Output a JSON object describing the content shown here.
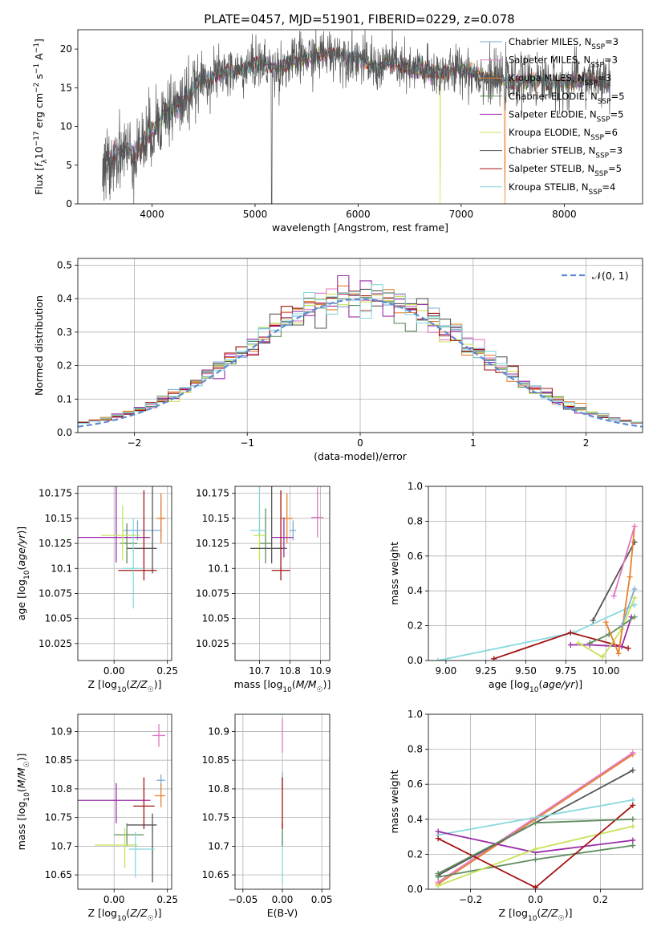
{
  "figure_title": "PLATE=0457, MJD=51901, FIBERID=0229, z=0.078",
  "palette": {
    "ch_miles": "#7fa9d3",
    "sa_miles": "#e377c2",
    "kr_miles": "#e6802e",
    "ch_elodie": "#5e8c5e",
    "sa_elodie": "#9a2da8",
    "kr_elodie": "#c8e25a",
    "ch_stelib": "#555555",
    "sa_stelib": "#a31212",
    "kr_stelib": "#86d8dc",
    "normal": "#5b8bd6"
  },
  "chart_data": [
    {
      "id": "spectrum",
      "type": "line",
      "title": "PLATE=0457, MJD=51901, FIBERID=0229, z=0.078",
      "xlabel": "wavelength [Angstrom, rest frame]",
      "ylabel": "Flux [fλ10⁻¹⁷ erg cm⁻² s⁻¹ A⁻¹]",
      "xlim": [
        3280,
        8760
      ],
      "ylim": [
        0,
        22.5
      ],
      "xticks": [
        4000,
        5000,
        6000,
        7000,
        8000
      ],
      "yticks": [
        0,
        5,
        10,
        15,
        20
      ],
      "grid": false,
      "legend_loc": "upper right",
      "legend": [
        {
          "key": "ch_miles",
          "label": "Chabrier MILES, N",
          "sub": "SSP",
          "suffix": "=3"
        },
        {
          "key": "sa_miles",
          "label": "Salpeter MILES, N",
          "sub": "SSP",
          "suffix": "=3"
        },
        {
          "key": "kr_miles",
          "label": "Kroupa MILES, N",
          "sub": "SSP",
          "suffix": "=3"
        },
        {
          "key": "ch_elodie",
          "label": "Chabrier ELODIE, N",
          "sub": "SSP",
          "suffix": "=5"
        },
        {
          "key": "sa_elodie",
          "label": "Salpeter ELODIE, N",
          "sub": "SSP",
          "suffix": "=5"
        },
        {
          "key": "kr_elodie",
          "label": "Kroupa ELODIE, N",
          "sub": "SSP",
          "suffix": "=6"
        },
        {
          "key": "ch_stelib",
          "label": "Chabrier STELIB, N",
          "sub": "SSP",
          "suffix": "=3"
        },
        {
          "key": "sa_stelib",
          "label": "Salpeter STELIB, N",
          "sub": "SSP",
          "suffix": "=5"
        },
        {
          "key": "kr_stelib",
          "label": "Kroupa STELIB, N",
          "sub": "SSP",
          "suffix": "=4"
        }
      ],
      "continuum": [
        [
          3500,
          3
        ],
        [
          3600,
          6
        ],
        [
          3700,
          7
        ],
        [
          3800,
          6.5
        ],
        [
          3900,
          7.5
        ],
        [
          4000,
          9.5
        ],
        [
          4100,
          11.5
        ],
        [
          4200,
          12.5
        ],
        [
          4300,
          13
        ],
        [
          4400,
          15
        ],
        [
          4500,
          16
        ],
        [
          4600,
          16.5
        ],
        [
          4700,
          17
        ],
        [
          4800,
          17
        ],
        [
          4900,
          17.5
        ],
        [
          5000,
          18
        ],
        [
          5100,
          18
        ],
        [
          5200,
          17.5
        ],
        [
          5300,
          18
        ],
        [
          5400,
          18.5
        ],
        [
          5500,
          19
        ],
        [
          5600,
          19
        ],
        [
          5700,
          19.5
        ],
        [
          5800,
          19.5
        ],
        [
          5900,
          19
        ],
        [
          6000,
          19
        ],
        [
          6100,
          18
        ],
        [
          6200,
          17.5
        ],
        [
          6300,
          18.5
        ],
        [
          6400,
          18
        ],
        [
          6500,
          17
        ],
        [
          6600,
          17.5
        ],
        [
          6700,
          17
        ],
        [
          6800,
          17
        ],
        [
          6900,
          17
        ],
        [
          7000,
          17.5
        ],
        [
          7100,
          17
        ],
        [
          7200,
          16.5
        ],
        [
          7300,
          16
        ],
        [
          7400,
          16
        ],
        [
          7500,
          15.5
        ],
        [
          7600,
          16
        ],
        [
          7700,
          16
        ],
        [
          7800,
          16
        ],
        [
          7900,
          15.5
        ],
        [
          8000,
          15.5
        ],
        [
          8100,
          16
        ],
        [
          8200,
          16
        ],
        [
          8300,
          16
        ],
        [
          8400,
          15.5
        ],
        [
          8500,
          15
        ]
      ]
    },
    {
      "id": "residuals",
      "type": "step",
      "xlabel": "(data-model)/error",
      "ylabel": "Normed distribution",
      "xlim": [
        -2.5,
        2.5
      ],
      "ylim": [
        0,
        0.52
      ],
      "xticks": [
        -2,
        -1,
        0,
        1,
        2
      ],
      "yticks": [
        0.0,
        0.1,
        0.2,
        0.3,
        0.4,
        0.5
      ],
      "grid": true,
      "legend_loc": "upper right",
      "legend": "𝒩(0, 1)",
      "normal": {
        "mean": 0,
        "sigma": 1
      }
    },
    {
      "id": "age_vs_z",
      "type": "errorbar",
      "xlabel": "Z [log10(Z/Z☉)]",
      "ylabel": "age  [log10(age/yr)]",
      "xlim": [
        -0.17,
        0.27
      ],
      "ylim": [
        10.008,
        10.182
      ],
      "xticks": [
        0.0,
        0.25
      ],
      "xticklabels": [
        "0.00",
        "0.25"
      ],
      "yticks": [
        10.025,
        10.05,
        10.075,
        10.1,
        10.125,
        10.15,
        10.175
      ],
      "grid": true,
      "points": [
        {
          "key": "ch_miles",
          "x": 0.11,
          "y": 10.138,
          "xerr": [
            0.07,
            0.11
          ],
          "yerr": [
            0.01,
            0.01
          ]
        },
        {
          "key": "sa_miles",
          "x": 0.22,
          "y": 10.15,
          "xerr": [
            0.01,
            0.02
          ],
          "yerr": [
            0.02,
            0.02
          ]
        },
        {
          "key": "kr_miles",
          "x": 0.22,
          "y": 10.15,
          "xerr": [
            0.02,
            0.02
          ],
          "yerr": [
            0.025,
            0.025
          ]
        },
        {
          "key": "ch_elodie",
          "x": 0.06,
          "y": 10.125,
          "xerr": [
            0.03,
            0.05
          ],
          "yerr": [
            0.02,
            0.02
          ]
        },
        {
          "key": "sa_elodie",
          "x": 0.01,
          "y": 10.131,
          "xerr": [
            0.18,
            0.16
          ],
          "yerr": [
            0.025,
            0.055
          ]
        },
        {
          "key": "kr_elodie",
          "x": 0.04,
          "y": 10.133,
          "xerr": [
            0.1,
            0.08
          ],
          "yerr": [
            0.025,
            0.03
          ]
        },
        {
          "key": "ch_stelib",
          "x": 0.18,
          "y": 10.12,
          "xerr": [
            0.12,
            0.02
          ],
          "yerr": [
            0.025,
            0.1
          ]
        },
        {
          "key": "sa_stelib",
          "x": 0.14,
          "y": 10.098,
          "xerr": [
            0.12,
            0.06
          ],
          "yerr": [
            0.01,
            0.08
          ]
        },
        {
          "key": "kr_stelib",
          "x": 0.09,
          "y": 10.1,
          "xerr": [
            0.05,
            0.05
          ],
          "yerr": [
            0.04,
            0.05
          ]
        }
      ]
    },
    {
      "id": "age_vs_mass",
      "type": "errorbar",
      "xlabel": "mass [log10(M/M☉)]",
      "ylabel": "",
      "xlim": [
        10.62,
        10.93
      ],
      "ylim": [
        10.008,
        10.182
      ],
      "xticks": [
        10.7,
        10.8,
        10.9
      ],
      "yticks": [
        10.025,
        10.05,
        10.075,
        10.1,
        10.125,
        10.15,
        10.175
      ],
      "grid": true,
      "points": [
        {
          "key": "ch_miles",
          "x": 10.81,
          "y": 10.138,
          "xerr": [
            0.01,
            0.01
          ],
          "yerr": [
            0.01,
            0.01
          ]
        },
        {
          "key": "sa_miles",
          "x": 10.89,
          "y": 10.151,
          "xerr": [
            0.02,
            0.02
          ],
          "yerr": [
            0.02,
            0.03
          ]
        },
        {
          "key": "kr_miles",
          "x": 10.79,
          "y": 10.15,
          "xerr": [
            0.02,
            0.02
          ],
          "yerr": [
            0.025,
            0.025
          ]
        },
        {
          "key": "ch_elodie",
          "x": 10.72,
          "y": 10.125,
          "xerr": [
            0.02,
            0.02
          ],
          "yerr": [
            0.02,
            0.035
          ]
        },
        {
          "key": "sa_elodie",
          "x": 10.78,
          "y": 10.131,
          "xerr": [
            0.04,
            0.03
          ],
          "yerr": [
            0.02,
            0.02
          ]
        },
        {
          "key": "kr_elodie",
          "x": 10.7,
          "y": 10.133,
          "xerr": [
            0.02,
            0.02
          ],
          "yerr": [
            0.025,
            0.03
          ]
        },
        {
          "key": "ch_stelib",
          "x": 10.74,
          "y": 10.12,
          "xerr": [
            0.07,
            0.05
          ],
          "yerr": [
            0.015,
            0.1
          ]
        },
        {
          "key": "sa_stelib",
          "x": 10.77,
          "y": 10.098,
          "xerr": [
            0.03,
            0.03
          ],
          "yerr": [
            0.01,
            0.08
          ]
        },
        {
          "key": "kr_stelib",
          "x": 10.7,
          "y": 10.138,
          "xerr": [
            0.03,
            0.02
          ],
          "yerr": [
            0.005,
            0.085
          ]
        }
      ]
    },
    {
      "id": "weight_vs_age",
      "type": "line",
      "xlabel": "age  [log10(age/yr)]",
      "ylabel": "mass weight",
      "xlim": [
        8.89,
        10.23
      ],
      "ylim": [
        0,
        1.0
      ],
      "xticks": [
        9.0,
        9.25,
        9.5,
        9.75,
        10.0
      ],
      "xticklabels": [
        "9.00",
        "9.25",
        "9.50",
        "9.75",
        "10.00"
      ],
      "yticks": [
        0,
        0.2,
        0.4,
        0.6,
        0.8,
        1.0
      ],
      "yticklabels": [
        "0.0",
        "0.2",
        "0.4",
        "0.6",
        "0.8",
        "1.0"
      ],
      "grid": true,
      "series": [
        {
          "key": "kr_stelib",
          "x": [
            8.95,
            9.8,
            10.18
          ],
          "y": [
            0,
            0.16,
            0.32
          ]
        },
        {
          "key": "sa_stelib",
          "x": [
            9.3,
            9.78,
            10.14
          ],
          "y": [
            0.01,
            0.16,
            0.07
          ]
        },
        {
          "key": "ch_stelib",
          "x": [
            9.92,
            10.18
          ],
          "y": [
            0.23,
            0.68
          ]
        },
        {
          "key": "sa_elodie",
          "x": [
            9.78,
            9.9,
            10.1,
            10.16
          ],
          "y": [
            0.09,
            0.09,
            0.08,
            0.25
          ]
        },
        {
          "key": "kr_elodie",
          "x": [
            9.83,
            9.98,
            10.1,
            10.18
          ],
          "y": [
            0.1,
            0.02,
            0.18,
            0.36
          ]
        },
        {
          "key": "ch_elodie",
          "x": [
            9.9,
            10.02,
            10.18
          ],
          "y": [
            0.1,
            0.15,
            0.25
          ]
        },
        {
          "key": "kr_miles",
          "x": [
            10.0,
            10.08,
            10.15,
            10.18
          ],
          "y": [
            0.22,
            0.04,
            0.48,
            0.77
          ]
        },
        {
          "key": "sa_miles",
          "x": [
            10.05,
            10.18
          ],
          "y": [
            0.37,
            0.77
          ]
        },
        {
          "key": "ch_miles",
          "x": [
            10.1,
            10.18
          ],
          "y": [
            0.2,
            0.41
          ]
        }
      ]
    },
    {
      "id": "mass_vs_z",
      "type": "errorbar",
      "xlabel": "Z [log10(Z/Z☉)]",
      "ylabel": "mass [log10(M/M☉)]",
      "xlim": [
        -0.17,
        0.27
      ],
      "ylim": [
        10.625,
        10.93
      ],
      "xticks": [
        0.0,
        0.25
      ],
      "xticklabels": [
        "0.00",
        "0.25"
      ],
      "yticks": [
        10.65,
        10.7,
        10.75,
        10.8,
        10.85,
        10.9
      ],
      "grid": true,
      "points": [
        {
          "key": "ch_miles",
          "x": 0.22,
          "y": 10.815,
          "xerr": [
            0.02,
            0.02
          ],
          "yerr": [
            0.01,
            0.01
          ]
        },
        {
          "key": "sa_miles",
          "x": 0.21,
          "y": 10.893,
          "xerr": [
            0.03,
            0.03
          ],
          "yerr": [
            0.02,
            0.02
          ]
        },
        {
          "key": "kr_miles",
          "x": 0.22,
          "y": 10.788,
          "xerr": [
            0.03,
            0.02
          ],
          "yerr": [
            0.02,
            0.02
          ]
        },
        {
          "key": "ch_elodie",
          "x": 0.06,
          "y": 10.72,
          "xerr": [
            0.06,
            0.08
          ],
          "yerr": [
            0.02,
            0.02
          ]
        },
        {
          "key": "sa_elodie",
          "x": 0.01,
          "y": 10.78,
          "xerr": [
            0.18,
            0.16
          ],
          "yerr": [
            0.04,
            0.03
          ]
        },
        {
          "key": "kr_elodie",
          "x": 0.05,
          "y": 10.702,
          "xerr": [
            0.14,
            0.06
          ],
          "yerr": [
            0.04,
            0.03
          ]
        },
        {
          "key": "ch_stelib",
          "x": 0.18,
          "y": 10.737,
          "xerr": [
            0.12,
            0.02
          ],
          "yerr": [
            0.1,
            0.02
          ]
        },
        {
          "key": "sa_stelib",
          "x": 0.14,
          "y": 10.77,
          "xerr": [
            0.05,
            0.05
          ],
          "yerr": [
            0.04,
            0.05
          ]
        },
        {
          "key": "kr_stelib",
          "x": 0.1,
          "y": 10.695,
          "xerr": [
            0.03,
            0.09
          ],
          "yerr": [
            0.05,
            0.03
          ]
        }
      ]
    },
    {
      "id": "mass_vs_ebv",
      "type": "errorbar",
      "xlabel": "E(B-V)",
      "ylabel": "",
      "xlim": [
        -0.06,
        0.06
      ],
      "ylim": [
        10.625,
        10.93
      ],
      "xticks": [
        -0.05,
        0.0,
        0.05
      ],
      "xticklabels": [
        "−0.05",
        "0.00",
        "0.05"
      ],
      "yticks": [
        10.65,
        10.7,
        10.75,
        10.8,
        10.85,
        10.9
      ],
      "grid": true,
      "points": [
        {
          "key": "sa_miles",
          "x": 0,
          "y": 10.893,
          "xerr": [
            0,
            0
          ],
          "yerr": [
            0.03,
            0.03
          ]
        },
        {
          "key": "ch_miles",
          "x": 0,
          "y": 10.815,
          "xerr": [
            0,
            0
          ],
          "yerr": [
            0.015,
            0.015
          ]
        },
        {
          "key": "kr_stelib",
          "x": 0,
          "y": 10.695,
          "xerr": [
            0,
            0
          ],
          "yerr": [
            0.06,
            0.03
          ]
        },
        {
          "key": "ch_elodie",
          "x": 0,
          "y": 10.72,
          "xerr": [
            0,
            0
          ],
          "yerr": [
            0.02,
            0.02
          ]
        },
        {
          "key": "sa_stelib",
          "x": 0,
          "y": 10.77,
          "xerr": [
            0,
            0
          ],
          "yerr": [
            0.04,
            0.05
          ]
        }
      ]
    },
    {
      "id": "weight_vs_z",
      "type": "line",
      "xlabel": "Z [log10(Z/Z☉)]",
      "ylabel": "mass weight",
      "xlim": [
        -0.33,
        0.33
      ],
      "ylim": [
        0,
        1.0
      ],
      "xticks": [
        -0.2,
        0.0,
        0.2
      ],
      "xticklabels": [
        "−0.2",
        "0.0",
        "0.2"
      ],
      "yticks": [
        0,
        0.2,
        0.4,
        0.6,
        0.8,
        1.0
      ],
      "yticklabels": [
        "0.0",
        "0.2",
        "0.4",
        "0.6",
        "0.8",
        "1.0"
      ],
      "grid": true,
      "series": [
        {
          "key": "kr_miles",
          "x": [
            -0.3,
            0.3
          ],
          "y": [
            0.03,
            0.77
          ]
        },
        {
          "key": "sa_miles",
          "x": [
            -0.3,
            0.3
          ],
          "y": [
            0.04,
            0.78
          ]
        },
        {
          "key": "ch_stelib",
          "x": [
            -0.3,
            0.3
          ],
          "y": [
            0.08,
            0.68
          ]
        },
        {
          "key": "kr_stelib",
          "x": [
            -0.3,
            0.3
          ],
          "y": [
            0.31,
            0.51
          ]
        },
        {
          "key": "ch_elodie",
          "x": [
            -0.3,
            0,
            0.3
          ],
          "y": [
            0.07,
            0.17,
            0.25
          ]
        },
        {
          "key": "sa_elodie",
          "x": [
            -0.3,
            0,
            0.3
          ],
          "y": [
            0.33,
            0.21,
            0.28
          ]
        },
        {
          "key": "kr_elodie",
          "x": [
            -0.3,
            0,
            0.3
          ],
          "y": [
            0.02,
            0.23,
            0.36
          ]
        },
        {
          "key": "sa_stelib",
          "x": [
            -0.3,
            0,
            0.3
          ],
          "y": [
            0.29,
            0.01,
            0.48
          ]
        },
        {
          "key": "ch_elodie",
          "x": [
            -0.3,
            0,
            0.3
          ],
          "y": [
            0.09,
            0.38,
            0.4
          ]
        }
      ]
    }
  ]
}
